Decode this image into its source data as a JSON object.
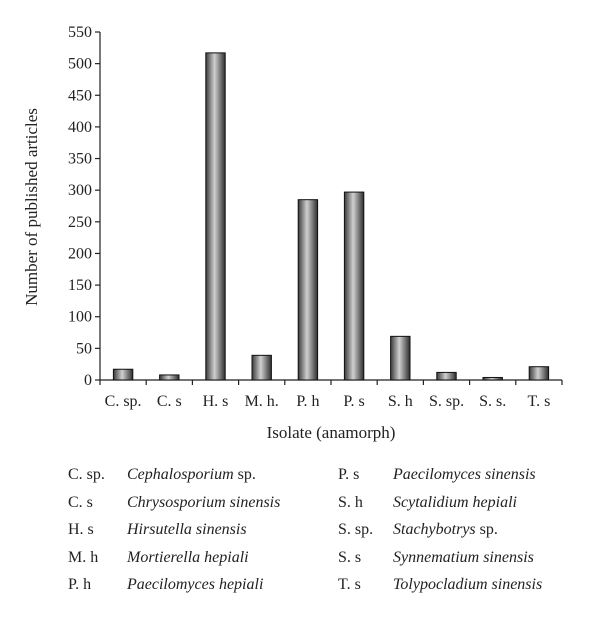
{
  "chart_data": {
    "type": "bar",
    "title": "",
    "xlabel": "Isolate (anamorph)",
    "ylabel": "Number of published articles",
    "categories": [
      "C. sp.",
      "C. s",
      "H. s",
      "M. h.",
      "P. h",
      "P. s",
      "S. h",
      "S. sp.",
      "S. s.",
      "T. s"
    ],
    "values": [
      17,
      8,
      517,
      39,
      285,
      297,
      69,
      12,
      4,
      21
    ],
    "ylim": [
      0,
      550
    ],
    "yticks": [
      "0",
      "50",
      "100",
      "150",
      "200",
      "250",
      "300",
      "350",
      "400",
      "450",
      "500",
      "550"
    ],
    "grid": false,
    "bar_style": "dark gray gradient with black outline",
    "colors": {
      "bar_dark": "#3a3a3a",
      "bar_light": "#c8c8c8",
      "axis": "#222222"
    }
  },
  "legend": {
    "left": [
      {
        "abbr": "C. sp.",
        "name": "Cephalosporium",
        "suffix": " sp."
      },
      {
        "abbr": "C. s",
        "name": "Chrysosporium sinensis",
        "suffix": ""
      },
      {
        "abbr": "H. s",
        "name": "Hirsutella sinensis",
        "suffix": ""
      },
      {
        "abbr": "M. h",
        "name": "Mortierella hepiali",
        "suffix": ""
      },
      {
        "abbr": "P. h",
        "name": "Paecilomyces hepiali",
        "suffix": ""
      }
    ],
    "right": [
      {
        "abbr": "P. s",
        "name": "Paecilomyces sinensis",
        "suffix": ""
      },
      {
        "abbr": "S. h",
        "name": "Scytalidium hepiali",
        "suffix": ""
      },
      {
        "abbr": "S. sp.",
        "name": "Stachybotrys",
        "suffix": " sp."
      },
      {
        "abbr": "S. s",
        "name": "Synnematium sinensis",
        "suffix": ""
      },
      {
        "abbr": "T. s",
        "name": "Tolypocladium sinensis",
        "suffix": ""
      }
    ]
  }
}
